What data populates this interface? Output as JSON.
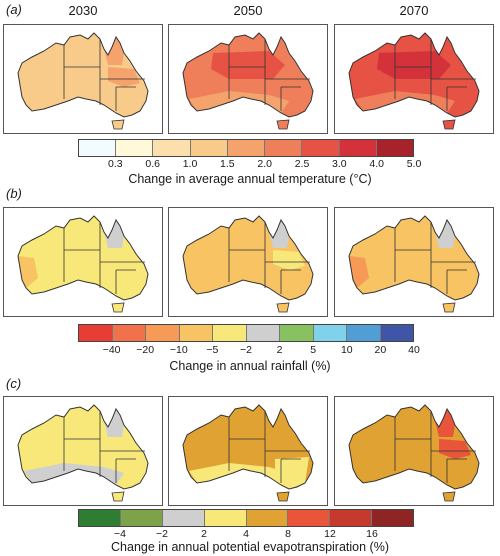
{
  "columns": [
    "2030",
    "2050",
    "2070"
  ],
  "panels": [
    {
      "label": "(a)",
      "legend_title": "Change in average annual temperature (°C)",
      "ticks": [
        "0.3",
        "0.6",
        "1.0",
        "1.5",
        "2.0",
        "2.5",
        "3.0",
        "4.0",
        "5.0"
      ],
      "colors": [
        "#f2fbfd",
        "#fff8d9",
        "#fbe0ad",
        "#f9cb8b",
        "#f4a36d",
        "#ef7f5b",
        "#e65244",
        "#d3323a",
        "#a8222c"
      ],
      "maps": [
        {
          "base": "#f9cb8b",
          "accent": "#f4a36d",
          "accent_area": "north-tip",
          "second": "#f4a36d",
          "second_area": "east-patch"
        },
        {
          "base": "#ef7f5b",
          "accent": "#f4a36d",
          "accent_area": "south-band",
          "second": "#e65244",
          "second_area": "north-interior"
        },
        {
          "base": "#e65244",
          "accent": "#ef7f5b",
          "accent_area": "south-band",
          "second": "#d3323a",
          "second_area": "north-interior"
        }
      ]
    },
    {
      "label": "(b)",
      "legend_title": "Change in annual rainfall (%)",
      "ticks": [
        "−40",
        "−20",
        "−10",
        "−5",
        "−2",
        "2",
        "5",
        "10",
        "20",
        "40"
      ],
      "colors": [
        "#e83d35",
        "#f1714a",
        "#f69a55",
        "#f7c363",
        "#f8e87a",
        "#cfcfcf",
        "#87c160",
        "#7fd2e9",
        "#4f9fd6",
        "#3f56a8"
      ],
      "maps": [
        {
          "base": "#f8e87a",
          "accent": "#cfcfcf",
          "accent_area": "north-tip",
          "second": "#f7c363",
          "second_area": "southwest"
        },
        {
          "base": "#f7c363",
          "accent": "#cfcfcf",
          "accent_area": "north-tip",
          "second": "#f8e87a",
          "second_area": "east-patch"
        },
        {
          "base": "#f7c363",
          "accent": "#cfcfcf",
          "accent_area": "north-tip",
          "second": "#f69a55",
          "second_area": "southwest"
        }
      ]
    },
    {
      "label": "(c)",
      "legend_title": "Change in annual potential evapotranspiration (%)",
      "ticks": [
        "−4",
        "−2",
        "2",
        "4",
        "8",
        "12",
        "16"
      ],
      "colors": [
        "#2e7d32",
        "#7da24a",
        "#cfcfcf",
        "#f8e87a",
        "#dfa233",
        "#e8553a",
        "#c63a2e",
        "#8f2424"
      ],
      "maps": [
        {
          "base": "#f8e87a",
          "accent": "#cfcfcf",
          "accent_area": "south-band",
          "second": "#cfcfcf",
          "second_area": "north-tip"
        },
        {
          "base": "#dfa233",
          "accent": "#f8e87a",
          "accent_area": "southeast",
          "second": "#f8e87a",
          "second_area": "south-band"
        },
        {
          "base": "#dfa233",
          "accent": "#e8553a",
          "accent_area": "north-tip",
          "second": "#e8553a",
          "second_area": "east-patch"
        }
      ]
    }
  ]
}
